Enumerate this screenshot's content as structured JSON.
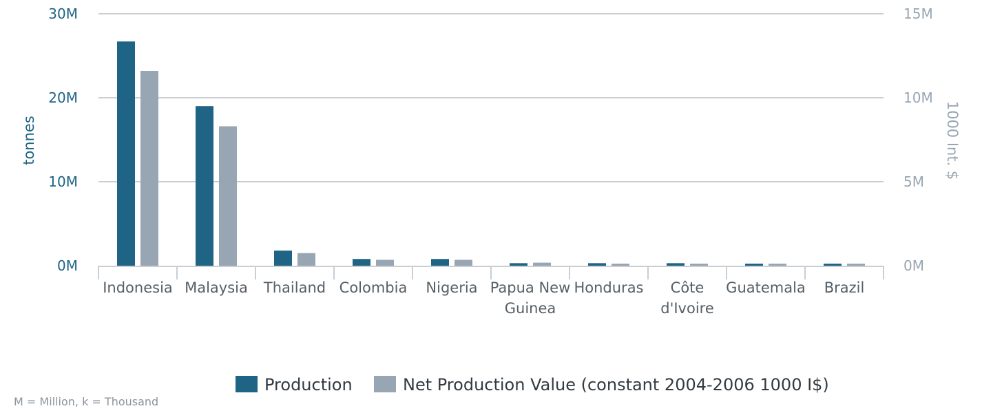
{
  "chart_data": {
    "type": "bar",
    "categories": [
      "Indonesia",
      "Malaysia",
      "Thailand",
      "Colombia",
      "Nigeria",
      "Papua New Guinea",
      "Honduras",
      "Côte d'Ivoire",
      "Guatemala",
      "Brazil"
    ],
    "series": [
      {
        "name": "Production",
        "axis": "left",
        "color": "#1f6485",
        "values": [
          26700000,
          19000000,
          1800000,
          800000,
          800000,
          300000,
          300000,
          300000,
          150000,
          150000
        ]
      },
      {
        "name": "Net Production Value (constant 2004-2006 1000 I$)",
        "axis": "right",
        "color": "#98a6b3",
        "values": [
          11600000,
          8300000,
          750000,
          350000,
          350000,
          180000,
          120000,
          120000,
          100000,
          100000
        ]
      }
    ],
    "left_axis": {
      "label": "tonnes",
      "range": [
        0,
        30000000
      ],
      "ticks": [
        "0M",
        "10M",
        "20M",
        "30M"
      ]
    },
    "right_axis": {
      "label": "1000 Int. $",
      "range": [
        0,
        15000000
      ],
      "ticks": [
        "0M",
        "5M",
        "10M",
        "15M"
      ]
    },
    "legend_position": "bottom-center",
    "grid": true,
    "note": "M = Million, k = Thousand"
  }
}
